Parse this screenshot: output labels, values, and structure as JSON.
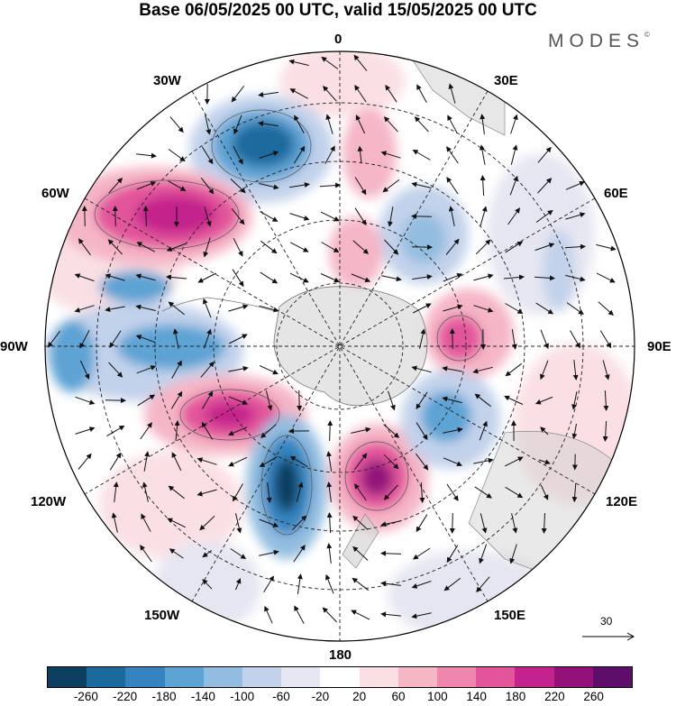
{
  "title": "Base 06/05/2025 00 UTC, valid 15/05/2025 00 UTC",
  "brand": "MODES",
  "brand_mark": "©",
  "longitude_labels": {
    "top": "0",
    "bottom": "180",
    "left": "90W",
    "right": "90E",
    "upper_left_1": "30W",
    "upper_left_2": "60W",
    "upper_right_1": "30E",
    "upper_right_2": "60E",
    "lower_left_1": "120W",
    "lower_left_2": "150W",
    "lower_right_1": "120E",
    "lower_right_2": "150E"
  },
  "reference_vector": {
    "value": "30",
    "icon": "arrow-right-icon"
  },
  "colorbar": {
    "colors": [
      "#0c3e5f",
      "#1a6a9e",
      "#3584c0",
      "#5da3d4",
      "#93bde0",
      "#c2d2eb",
      "#e6e6f2",
      "#ffffff",
      "#fae0e4",
      "#f5b6c6",
      "#ef86ad",
      "#e2559b",
      "#c4228c",
      "#92127a",
      "#5d0e6b"
    ],
    "ticks": [
      "-260",
      "-220",
      "-180",
      "-140",
      "-100",
      "-60",
      "-20",
      "20",
      "60",
      "100",
      "140",
      "180",
      "220",
      "260"
    ]
  },
  "map_data": {
    "projection": "south polar stereographic",
    "field": "anomaly shading with wind vectors",
    "positive_centers": [
      "60W",
      "south of 150E (near 170E)",
      "near 85E",
      "near 115W"
    ],
    "negative_centers": [
      "near 30W",
      "near 160W",
      "near 75W",
      "near 110E"
    ]
  }
}
